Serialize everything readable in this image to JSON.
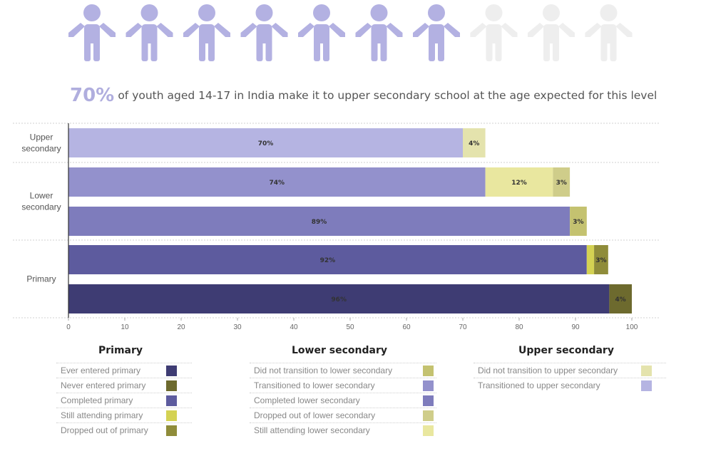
{
  "pictogram": {
    "total": 10,
    "filled": 7,
    "filled_color": "#b3b1e2",
    "empty_color": "#eeeeee",
    "icon": "person-icon"
  },
  "headline": {
    "percent": "70%",
    "text": "of youth aged 14-17 in India make it to upper secondary school at the age expected for this level"
  },
  "chart_data": {
    "type": "bar",
    "orientation": "horizontal",
    "stacked": true,
    "xlim": [
      0,
      100
    ],
    "xticks": [
      "0",
      "10",
      "20",
      "30",
      "40",
      "50",
      "60",
      "70",
      "80",
      "90",
      "100"
    ],
    "grid": false,
    "groups": [
      {
        "label_lines": [
          "Upper",
          "secondary"
        ],
        "bars": [
          {
            "segments": [
              {
                "series": "Transitioned to upper secondary",
                "value": 70,
                "label": "70%",
                "color": "#b5b4e2"
              },
              {
                "series": "Did not transition to upper secondary",
                "value": 4,
                "label": "4%",
                "color": "#e4e3ad"
              }
            ]
          }
        ]
      },
      {
        "label_lines": [
          "Lower",
          "secondary"
        ],
        "bars": [
          {
            "segments": [
              {
                "series": "Transitioned to lower secondary",
                "value": 74,
                "label": "74%",
                "color": "#9391cc"
              },
              {
                "series": "Still attending lower secondary",
                "value": 12,
                "label": "12%",
                "color": "#e9e79f"
              },
              {
                "series": "Dropped out of lower secondary",
                "value": 3,
                "label": "3%",
                "color": "#cfcd8a"
              }
            ]
          },
          {
            "segments": [
              {
                "series": "Completed lower secondary",
                "value": 89,
                "label": "89%",
                "color": "#7e7cbc"
              },
              {
                "series": "Did not transition to lower secondary",
                "value": 3,
                "label": "3%",
                "color": "#c4c270"
              }
            ]
          }
        ]
      },
      {
        "label_lines": [
          "Primary"
        ],
        "bars": [
          {
            "segments": [
              {
                "series": "Completed primary",
                "value": 92,
                "label": "92%",
                "color": "#5d5b9e"
              },
              {
                "series": "Still attending primary",
                "value": 1.3,
                "label": "",
                "color": "#d4d253"
              },
              {
                "series": "Dropped out of primary",
                "value": 2.5,
                "label": "3%",
                "color": "#8f8c3a"
              }
            ]
          },
          {
            "segments": [
              {
                "series": "Ever entered primary",
                "value": 96,
                "label": "96%",
                "color": "#3e3c73"
              },
              {
                "series": "Never entered primary",
                "value": 4,
                "label": "4%",
                "color": "#6d6a2e"
              }
            ]
          }
        ]
      }
    ]
  },
  "legend": [
    {
      "title": "Primary",
      "items": [
        {
          "label": "Ever entered primary",
          "color": "#3e3c73"
        },
        {
          "label": "Never entered primary",
          "color": "#6d6a2e"
        },
        {
          "label": "Completed primary",
          "color": "#5d5b9e"
        },
        {
          "label": "Still attending primary",
          "color": "#d4d253"
        },
        {
          "label": "Dropped out of primary",
          "color": "#8f8c3a"
        }
      ]
    },
    {
      "title": "Lower secondary",
      "items": [
        {
          "label": "Did not transition to lower secondary",
          "color": "#c4c270"
        },
        {
          "label": "Transitioned to lower secondary",
          "color": "#9391cc"
        },
        {
          "label": "Completed lower secondary",
          "color": "#7e7cbc"
        },
        {
          "label": "Dropped out of lower secondary",
          "color": "#cfcd8a"
        },
        {
          "label": "Still attending lower secondary",
          "color": "#e9e79f"
        }
      ]
    },
    {
      "title": "Upper secondary",
      "items": [
        {
          "label": "Did not transition to upper secondary",
          "color": "#e4e3ad"
        },
        {
          "label": "Transitioned to upper secondary",
          "color": "#b5b4e2"
        }
      ]
    }
  ]
}
